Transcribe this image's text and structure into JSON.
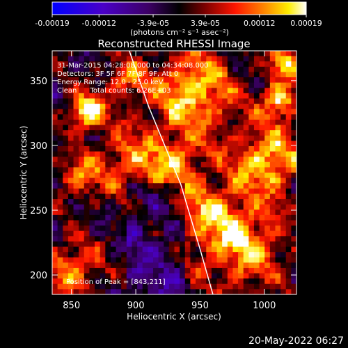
{
  "chart_data": {
    "type": "heatmap",
    "title": "Reconstructed RHESSI Image",
    "xlabel": "Heliocentric X (arcsec)",
    "ylabel": "Heliocentric Y (arcsec)",
    "xlim": [
      835,
      1025
    ],
    "ylim": [
      185,
      373
    ],
    "x_ticks": [
      850,
      900,
      950,
      1000
    ],
    "y_ticks": [
      200,
      250,
      300,
      350
    ],
    "x_tick_labels": [
      "850",
      "900",
      "950",
      "1000"
    ],
    "y_tick_labels": [
      "200",
      "250",
      "300",
      "350"
    ],
    "colorbar": {
      "range": [
        -0.00019,
        0.00019
      ],
      "tick_values": [
        -0.00019,
        -0.00012,
        -3.9e-05,
        3.9e-05,
        0.00012,
        0.00019
      ],
      "tick_labels": [
        "-0.00019",
        "-0.00012",
        "-3.9e-05",
        "3.9e-05",
        "0.00012",
        "0.00019"
      ],
      "units_label": "(photons cm⁻² s⁻¹ asec⁻²)",
      "colormap": [
        "#0000ff",
        "#4a00c8",
        "#3c0064",
        "#000000",
        "#7a0000",
        "#ff1500",
        "#ff8c00",
        "#ffee00",
        "#ffffff"
      ]
    },
    "info_lines": [
      "31-Mar-2015 04:28:08.000 to 04:34:08.000",
      "Detectors: 3F 5F 6F 7F 8F 9F, Att 0",
      "Energy Range: 12.0 - 25.0 keV",
      "Clean      Total counts: 6.26E+03"
    ],
    "peak_label": "Position of Peak = [843,211]",
    "peak_position": [
      843,
      211
    ],
    "grid": false,
    "limb_line": [
      [
        895,
        373
      ],
      [
        910,
        330
      ],
      [
        935,
        270
      ],
      [
        950,
        220
      ],
      [
        960,
        185
      ]
    ]
  },
  "timestamp": "20-May-2022 06:27"
}
